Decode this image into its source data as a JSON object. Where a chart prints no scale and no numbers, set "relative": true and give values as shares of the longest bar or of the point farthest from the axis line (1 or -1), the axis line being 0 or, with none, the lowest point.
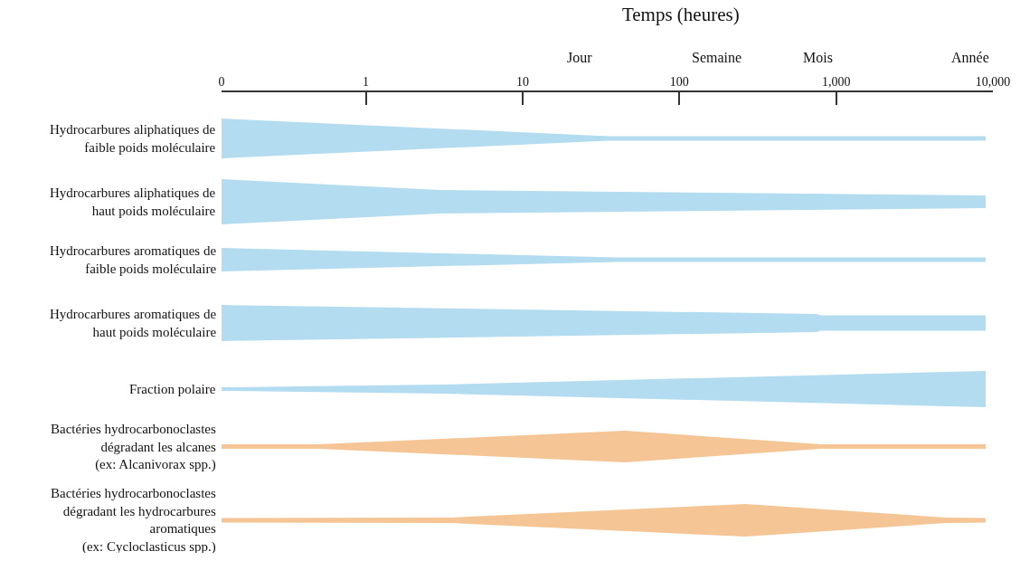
{
  "chart_data": [
    {
      "type": "area",
      "relative": true,
      "xlabel": "Temps (heures)",
      "log": "x",
      "tick_labels": "x",
      "xlim": [
        0.12,
        10000
      ],
      "xticks": [
        {
          "value": 0.12,
          "label": "0"
        },
        {
          "value": 1,
          "label": "1"
        },
        {
          "value": 10,
          "label": "10"
        },
        {
          "value": 100,
          "label": "100"
        },
        {
          "value": 1000,
          "label": "1,000"
        },
        {
          "value": 10000,
          "label": "10,000"
        }
      ],
      "annotations": [
        "Jour",
        "Semaine",
        "Mois",
        "Année"
      ],
      "series": [
        {
          "name": "Hydrocarbures aliphatiques de faible poids moléculaire",
          "color": "#b3dcf0",
          "x": [
            0.12,
            35,
            9000
          ],
          "values": [
            1,
            0.11,
            0.11
          ]
        }
      ]
    },
    {
      "type": "area",
      "relative": true,
      "log": "x",
      "tick_labels": false,
      "xlim": [
        0.12,
        10000
      ],
      "series": [
        {
          "name": "Hydrocarbures aliphatiques de haut poids moléculaire",
          "color": "#b3dcf0",
          "x": [
            0.12,
            3,
            9000
          ],
          "values": [
            1,
            0.52,
            0.28
          ]
        }
      ]
    },
    {
      "type": "area",
      "relative": true,
      "log": "x",
      "tick_labels": false,
      "xlim": [
        0.12,
        10000
      ],
      "series": [
        {
          "name": "Hydrocarbures aromatiques de faible poids moléculaire",
          "color": "#b3dcf0",
          "x": [
            0.12,
            40,
            9000
          ],
          "values": [
            1,
            0.19,
            0.19
          ]
        }
      ]
    },
    {
      "type": "area",
      "relative": true,
      "log": "x",
      "tick_labels": false,
      "xlim": [
        0.12,
        10000
      ],
      "series": [
        {
          "name": "Hydrocarbures aromatiques de haut poids moléculaire",
          "color": "#b3dcf0",
          "x": [
            0.12,
            750,
            800,
            9000
          ],
          "values": [
            1,
            0.5,
            0.43,
            0.43
          ]
        }
      ]
    },
    {
      "type": "area",
      "relative": true,
      "log": "x",
      "tick_labels": false,
      "xlim": [
        0.12,
        10000
      ],
      "series": [
        {
          "name": "Fraction polaire",
          "color": "#b3dcf0",
          "x": [
            0.12,
            3,
            9000
          ],
          "values": [
            0.1,
            0.25,
            1
          ]
        }
      ]
    },
    {
      "type": "area",
      "relative": true,
      "log": "x",
      "tick_labels": false,
      "xlim": [
        0.12,
        10000
      ],
      "series": [
        {
          "name": "Bactéries hydrocarbonoclastes dégradant les alcanes (ex: Alcanivorax spp.)",
          "color": "#f5c595",
          "x": [
            0.12,
            0.5,
            45,
            800,
            9000
          ],
          "values": [
            0.14,
            0.14,
            1,
            0.14,
            0.14
          ]
        }
      ]
    },
    {
      "type": "area",
      "relative": true,
      "log": "x",
      "tick_labels": false,
      "xlim": [
        0.12,
        10000
      ],
      "series": [
        {
          "name": "Bactéries hydrocarbonoclastes dégradant les hydrocarbures aromatiques (ex: Cycloclasticus spp.)",
          "color": "#f5c595",
          "x": [
            0.12,
            3.5,
            265,
            5000,
            9000
          ],
          "values": [
            0.14,
            0.17,
            1,
            0.17,
            0.14
          ]
        }
      ]
    }
  ]
}
